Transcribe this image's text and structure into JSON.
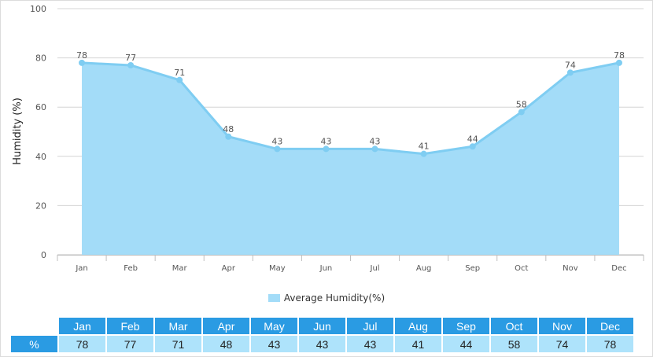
{
  "chart_data": {
    "type": "area",
    "categories": [
      "Jan",
      "Feb",
      "Mar",
      "Apr",
      "May",
      "Jun",
      "Jul",
      "Aug",
      "Sep",
      "Oct",
      "Nov",
      "Dec"
    ],
    "series": [
      {
        "name": "Average Humidity(%)",
        "values": [
          78,
          77,
          71,
          48,
          43,
          43,
          43,
          41,
          44,
          58,
          74,
          78
        ]
      }
    ],
    "ylabel": "Humidity (%)",
    "ylim": [
      0,
      100
    ],
    "yticks": [
      0,
      20,
      40,
      60,
      80,
      100
    ],
    "grid": true,
    "data_labels": true,
    "legend": "bottom-center",
    "colors": {
      "area_fill": "#a3dcf8",
      "line": "#7fcdf2",
      "table_header": "#2a9be3",
      "table_value": "#aee3fb"
    }
  },
  "table": {
    "row_label": "%"
  }
}
